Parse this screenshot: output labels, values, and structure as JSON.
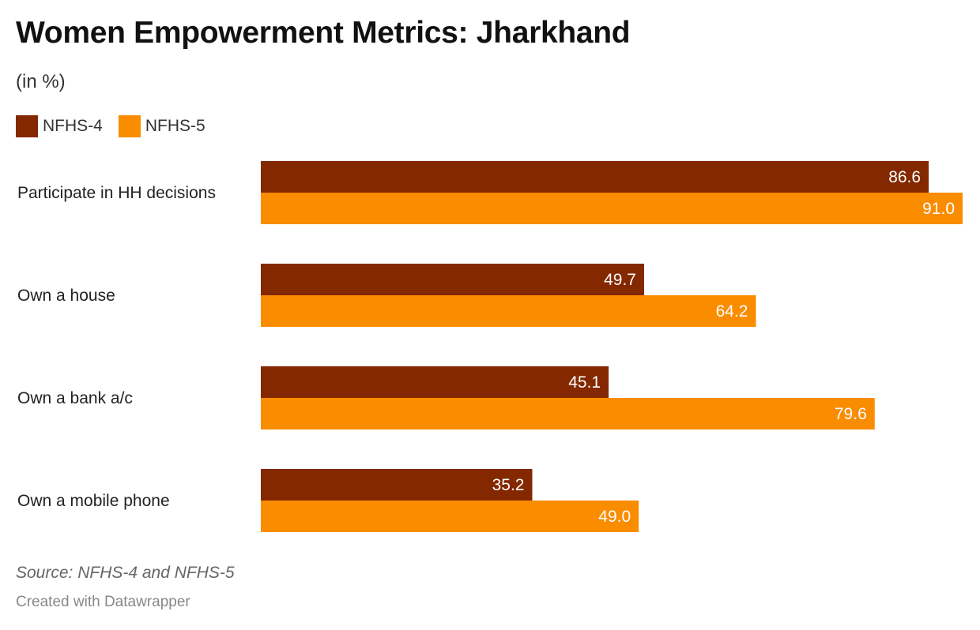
{
  "header": {
    "title": "Women Empowerment Metrics: Jharkhand",
    "subtitle": "(in %)"
  },
  "footer": {
    "source": "Source: NFHS-4 and NFHS-5",
    "credit": "Created with Datawrapper"
  },
  "chart_data": {
    "type": "bar",
    "orientation": "horizontal",
    "categories": [
      "Participate in HH decisions",
      "Own a house",
      "Own a bank a/c",
      "Own a mobile phone"
    ],
    "series": [
      {
        "name": "NFHS-4",
        "color": "#842800",
        "values": [
          86.6,
          49.7,
          45.1,
          35.2
        ],
        "labels": [
          "86.6",
          "49.7",
          "45.1",
          "35.2"
        ]
      },
      {
        "name": "NFHS-5",
        "color": "#fa8c00",
        "values": [
          91.0,
          64.2,
          79.6,
          49.0
        ],
        "labels": [
          "91.0",
          "64.2",
          "79.6",
          "49.0"
        ]
      }
    ],
    "xlim": [
      0,
      91.0
    ],
    "grid": false,
    "legend_position": "top-left"
  }
}
